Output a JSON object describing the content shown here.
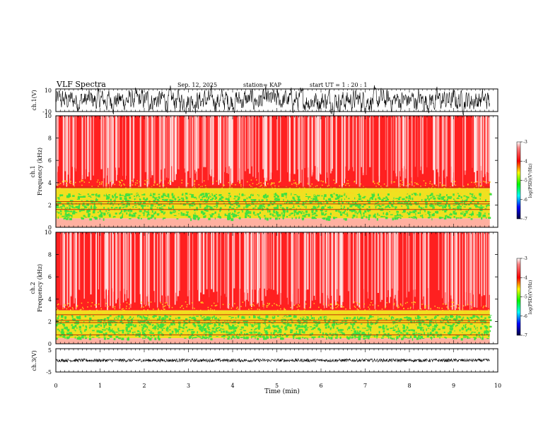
{
  "header": {
    "title": "VLF Spectra",
    "date": "Sep. 12, 2025",
    "station": "station= KAP",
    "start": "start  UT =   1 : 20 : 1"
  },
  "chart_data": [
    {
      "id": "ch1_waveform",
      "type": "line",
      "ylabel": "ch.1(V)",
      "ylim": [
        -10,
        10
      ],
      "ytick_labels": [
        "-10",
        "10"
      ],
      "xlim": [
        0,
        10
      ],
      "x_range_data": [
        0,
        9.82
      ],
      "series": [
        {
          "name": "ch.1 amplitude",
          "typical_range": [
            -8,
            8
          ],
          "color": "#000000"
        }
      ]
    },
    {
      "id": "ch1_spectrogram",
      "type": "heatmap",
      "ylabel_top": "ch.1",
      "ylabel": "Frequency (kHz)",
      "ylim": [
        0,
        10
      ],
      "ytick_labels": [
        "0",
        "2",
        "4",
        "6",
        "8",
        "10"
      ],
      "xlim": [
        0,
        10
      ],
      "x_range_data": [
        0,
        9.82
      ],
      "bands": [
        {
          "from": 0,
          "to": 0.8,
          "level": "low"
        },
        {
          "from": 0.8,
          "to": 3.5,
          "level": "mid"
        },
        {
          "from": 3.5,
          "to": 10,
          "level": "high"
        }
      ],
      "lines_khz": [
        1.6,
        2.1,
        2.3,
        3.6
      ],
      "colorbar": {
        "label": "log(PSD)(V²/Hz)",
        "ticks": [
          "-3",
          "-4",
          "-5",
          "-6",
          "-7"
        ],
        "range": [
          -7,
          -3
        ]
      }
    },
    {
      "id": "ch2_spectrogram",
      "type": "heatmap",
      "ylabel_top": "ch.2",
      "ylabel": "Frequency (kHz)",
      "ylim": [
        0,
        10
      ],
      "ytick_labels": [
        "0",
        "2",
        "4",
        "6",
        "8",
        "10"
      ],
      "xlim": [
        0,
        10
      ],
      "x_range_data": [
        0,
        9.82
      ],
      "bands": [
        {
          "from": 0,
          "to": 0.5,
          "level": "low"
        },
        {
          "from": 0.5,
          "to": 3.0,
          "level": "mid"
        },
        {
          "from": 3.0,
          "to": 10,
          "level": "high"
        }
      ],
      "lines_khz": [
        0.8,
        1.9,
        2.1,
        2.6
      ],
      "colorbar": {
        "label": "log(PSD)(V²/Hz)",
        "ticks": [
          "-3",
          "-4",
          "-5",
          "-6",
          "-7"
        ],
        "range": [
          -7,
          -3
        ]
      }
    },
    {
      "id": "ch3_waveform",
      "type": "line",
      "ylabel": "ch.3(V)",
      "ylim": [
        -5,
        5
      ],
      "ytick_labels": [
        "-5",
        "5"
      ],
      "xlim": [
        0,
        10
      ],
      "x_range_data": [
        0,
        9.82
      ],
      "series": [
        {
          "name": "ch.3 amplitude",
          "typical_range": [
            -0.5,
            0.5
          ],
          "color": "#000000"
        }
      ]
    }
  ],
  "xaxis": {
    "label": "Time (min)",
    "ticks": [
      "0",
      "1",
      "2",
      "3",
      "4",
      "5",
      "6",
      "7",
      "8",
      "9",
      "10"
    ]
  },
  "colors": {
    "high": "#ff2020",
    "mid": "#40e040",
    "lines": "#c03000",
    "trace": "#000000"
  }
}
